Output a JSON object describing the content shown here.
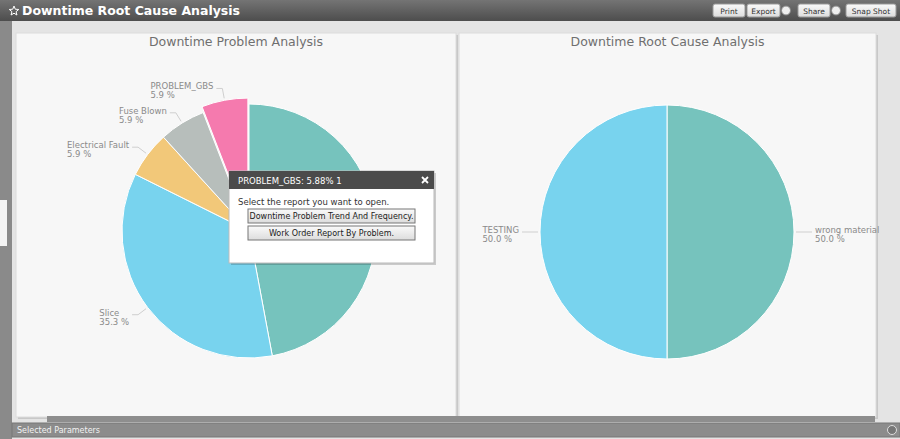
{
  "header": {
    "title": "Downtime Root Cause Analysis",
    "buttons": [
      "Print",
      "Export",
      "Share",
      "Snap Shot"
    ]
  },
  "chart_data": [
    {
      "type": "pie",
      "title": "Downtime Problem Analysis",
      "categories": [
        null,
        "Slice",
        "Electrical Fault",
        "Fuse Blown",
        "PROBLEM_GBS"
      ],
      "values": [
        47.06,
        35.29,
        5.88,
        5.88,
        5.88
      ],
      "value_labels": [
        null,
        "35.3 %",
        "5.9 %",
        "5.9 %",
        "5.9 %"
      ],
      "colors": [
        "#76c3bd",
        "#78d3ee",
        "#f2c879",
        "#b7bebb",
        "#f57aae"
      ],
      "data_labels": true
    },
    {
      "type": "pie",
      "title": "Downtime Root Cause Analysis",
      "categories": [
        "wrong material",
        "TESTING"
      ],
      "values": [
        50,
        50
      ],
      "value_labels": [
        "50.0 %",
        "50.0 %"
      ],
      "colors": [
        "#76c3bd",
        "#78d3ee"
      ],
      "data_labels": true
    }
  ],
  "popup": {
    "title": "PROBLEM_GBS: 5.88% 1",
    "prompt": "Select the report you want to open.",
    "buttons": [
      "Downtime Problem Trend And Frequency.",
      "Work Order Report By Problem."
    ]
  },
  "footer": {
    "title": "Selected Parameters"
  }
}
